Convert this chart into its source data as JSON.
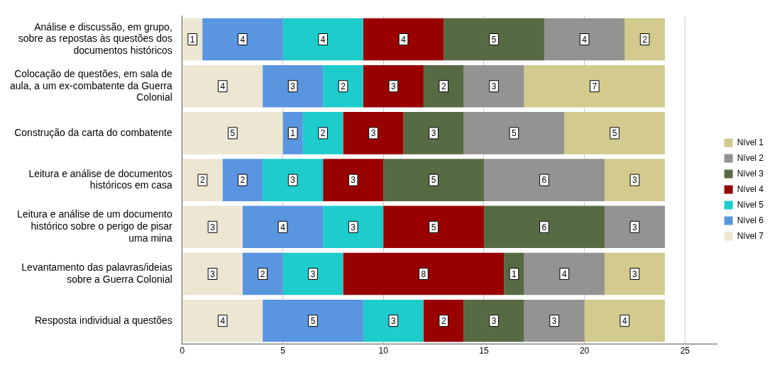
{
  "chart_data": {
    "type": "bar",
    "orientation": "horizontal",
    "stacked": true,
    "categories": [
      "Análise e discussão, em grupo, sobre as repostas às questões dos documentos históricos",
      "Colocação de questões, em sala de aula, a um ex-combatente da Guerra Colonial",
      "Construção da carta do combatente",
      "Leitura e análise de documentos históricos em casa",
      "Leitura e análise de um documento histórico sobre o perigo de pisar uma mina",
      "Levantamento das palavras/ideias sobre a Guerra Colonial",
      "Resposta individual a questões"
    ],
    "series": [
      {
        "name": "Nível 7",
        "color": "#ece6d2",
        "values": [
          1,
          4,
          5,
          2,
          3,
          3,
          4
        ]
      },
      {
        "name": "Nível 6",
        "color": "#5a95e0",
        "values": [
          4,
          3,
          1,
          2,
          4,
          2,
          5
        ]
      },
      {
        "name": "Nível 5",
        "color": "#1ecccc",
        "values": [
          4,
          2,
          2,
          3,
          3,
          3,
          3
        ]
      },
      {
        "name": "Nível 4",
        "color": "#990000",
        "values": [
          4,
          3,
          3,
          3,
          5,
          8,
          2
        ]
      },
      {
        "name": "Nível 3",
        "color": "#566b44",
        "values": [
          5,
          2,
          3,
          5,
          6,
          1,
          3
        ]
      },
      {
        "name": "Nível 2",
        "color": "#959292",
        "values": [
          4,
          3,
          5,
          6,
          3,
          4,
          3
        ]
      },
      {
        "name": "Nível 1",
        "color": "#d2cb8d",
        "values": [
          2,
          7,
          5,
          3,
          null,
          3,
          4
        ]
      }
    ],
    "xlim": [
      0,
      26.6
    ],
    "xticks": [
      0,
      5,
      10,
      15,
      20,
      25
    ],
    "grid": "x",
    "legend": "right",
    "data_labels": true
  }
}
